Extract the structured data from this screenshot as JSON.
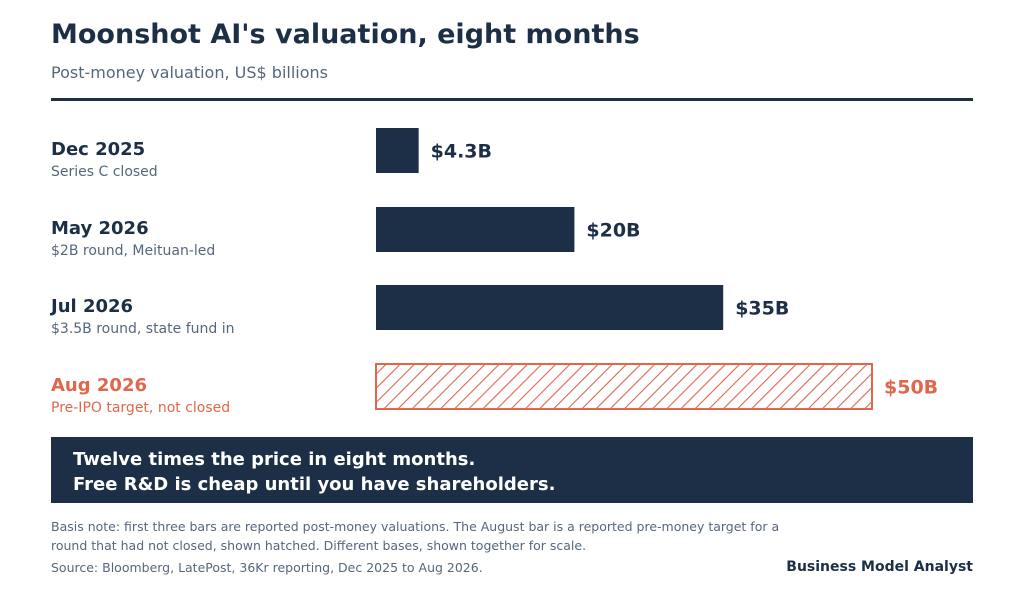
{
  "header": {
    "title": "Moonshot AI's valuation, eight months",
    "subtitle": "Post-money valuation, US$ billions"
  },
  "chart_data": {
    "type": "bar",
    "orientation": "horizontal",
    "categories": [
      "Dec 2025",
      "May 2026",
      "Jul 2026",
      "Aug 2026"
    ],
    "notes": [
      "Series C closed",
      "$2B round, Meituan-led",
      "$3.5B round, state fund in",
      "Pre-IPO target, not closed"
    ],
    "values": [
      4.3,
      20,
      35,
      50
    ],
    "value_labels": [
      "$4.3B",
      "$20B",
      "$35B",
      "$50B"
    ],
    "bar_styles": [
      "solid",
      "solid",
      "solid",
      "hatched"
    ],
    "grid": false,
    "colors": {
      "solid": "#1d2f46",
      "accent": "#e0674b"
    }
  },
  "callout": {
    "line1": "Twelve times the price in eight months.",
    "line2": "Free R&D is cheap until you have shareholders."
  },
  "footer": {
    "note": "Basis note: first three bars are reported post-money valuations. The August bar is a reported pre-money target for a round that had not closed, shown hatched. Different bases, shown together for scale.",
    "source": "Source: Bloomberg, LatePost, 36Kr reporting, Dec 2025 to Aug 2026.",
    "brand": "Business Model Analyst"
  }
}
